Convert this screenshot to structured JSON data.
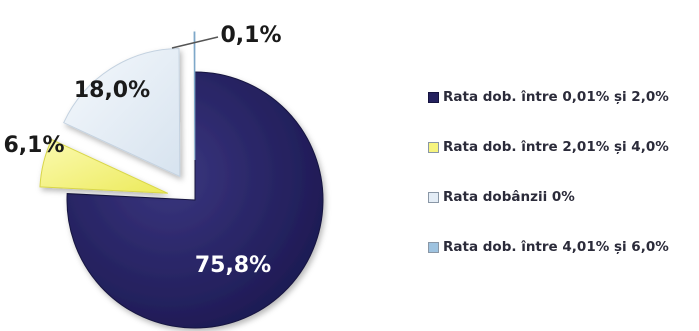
{
  "chart_data": {
    "type": "pie",
    "exploded": true,
    "title": "",
    "slices": [
      {
        "label": "Rata dob. între 0,01% și 2,0%",
        "value": 75.8,
        "value_label": "75,8%",
        "color": "#24215e"
      },
      {
        "label": "Rata dob. între 2,01% și 4,0%",
        "value": 6.1,
        "value_label": "6,1%",
        "color": "#f6f47e"
      },
      {
        "label": "Rata dobânzii 0%",
        "value": 18.0,
        "value_label": "18,0%",
        "color": "#e4edf6"
      },
      {
        "label": "Rata dob. între 4,01% și 6,0%",
        "value": 0.1,
        "value_label": "0,1%",
        "color": "#9ec3e0"
      }
    ],
    "legend": {
      "position": "right",
      "items": [
        {
          "label": "Rata dob. între 0,01% și 2,0%",
          "color": "#24215e"
        },
        {
          "label": "Rata dob. între 2,01% și 4,0%",
          "color": "#f6f47e"
        },
        {
          "label": "Rata dobânzii 0%",
          "color": "#e4edf6"
        },
        {
          "label": "Rata dob. între 4,01% și 6,0%",
          "color": "#9ec3e0"
        }
      ]
    }
  }
}
